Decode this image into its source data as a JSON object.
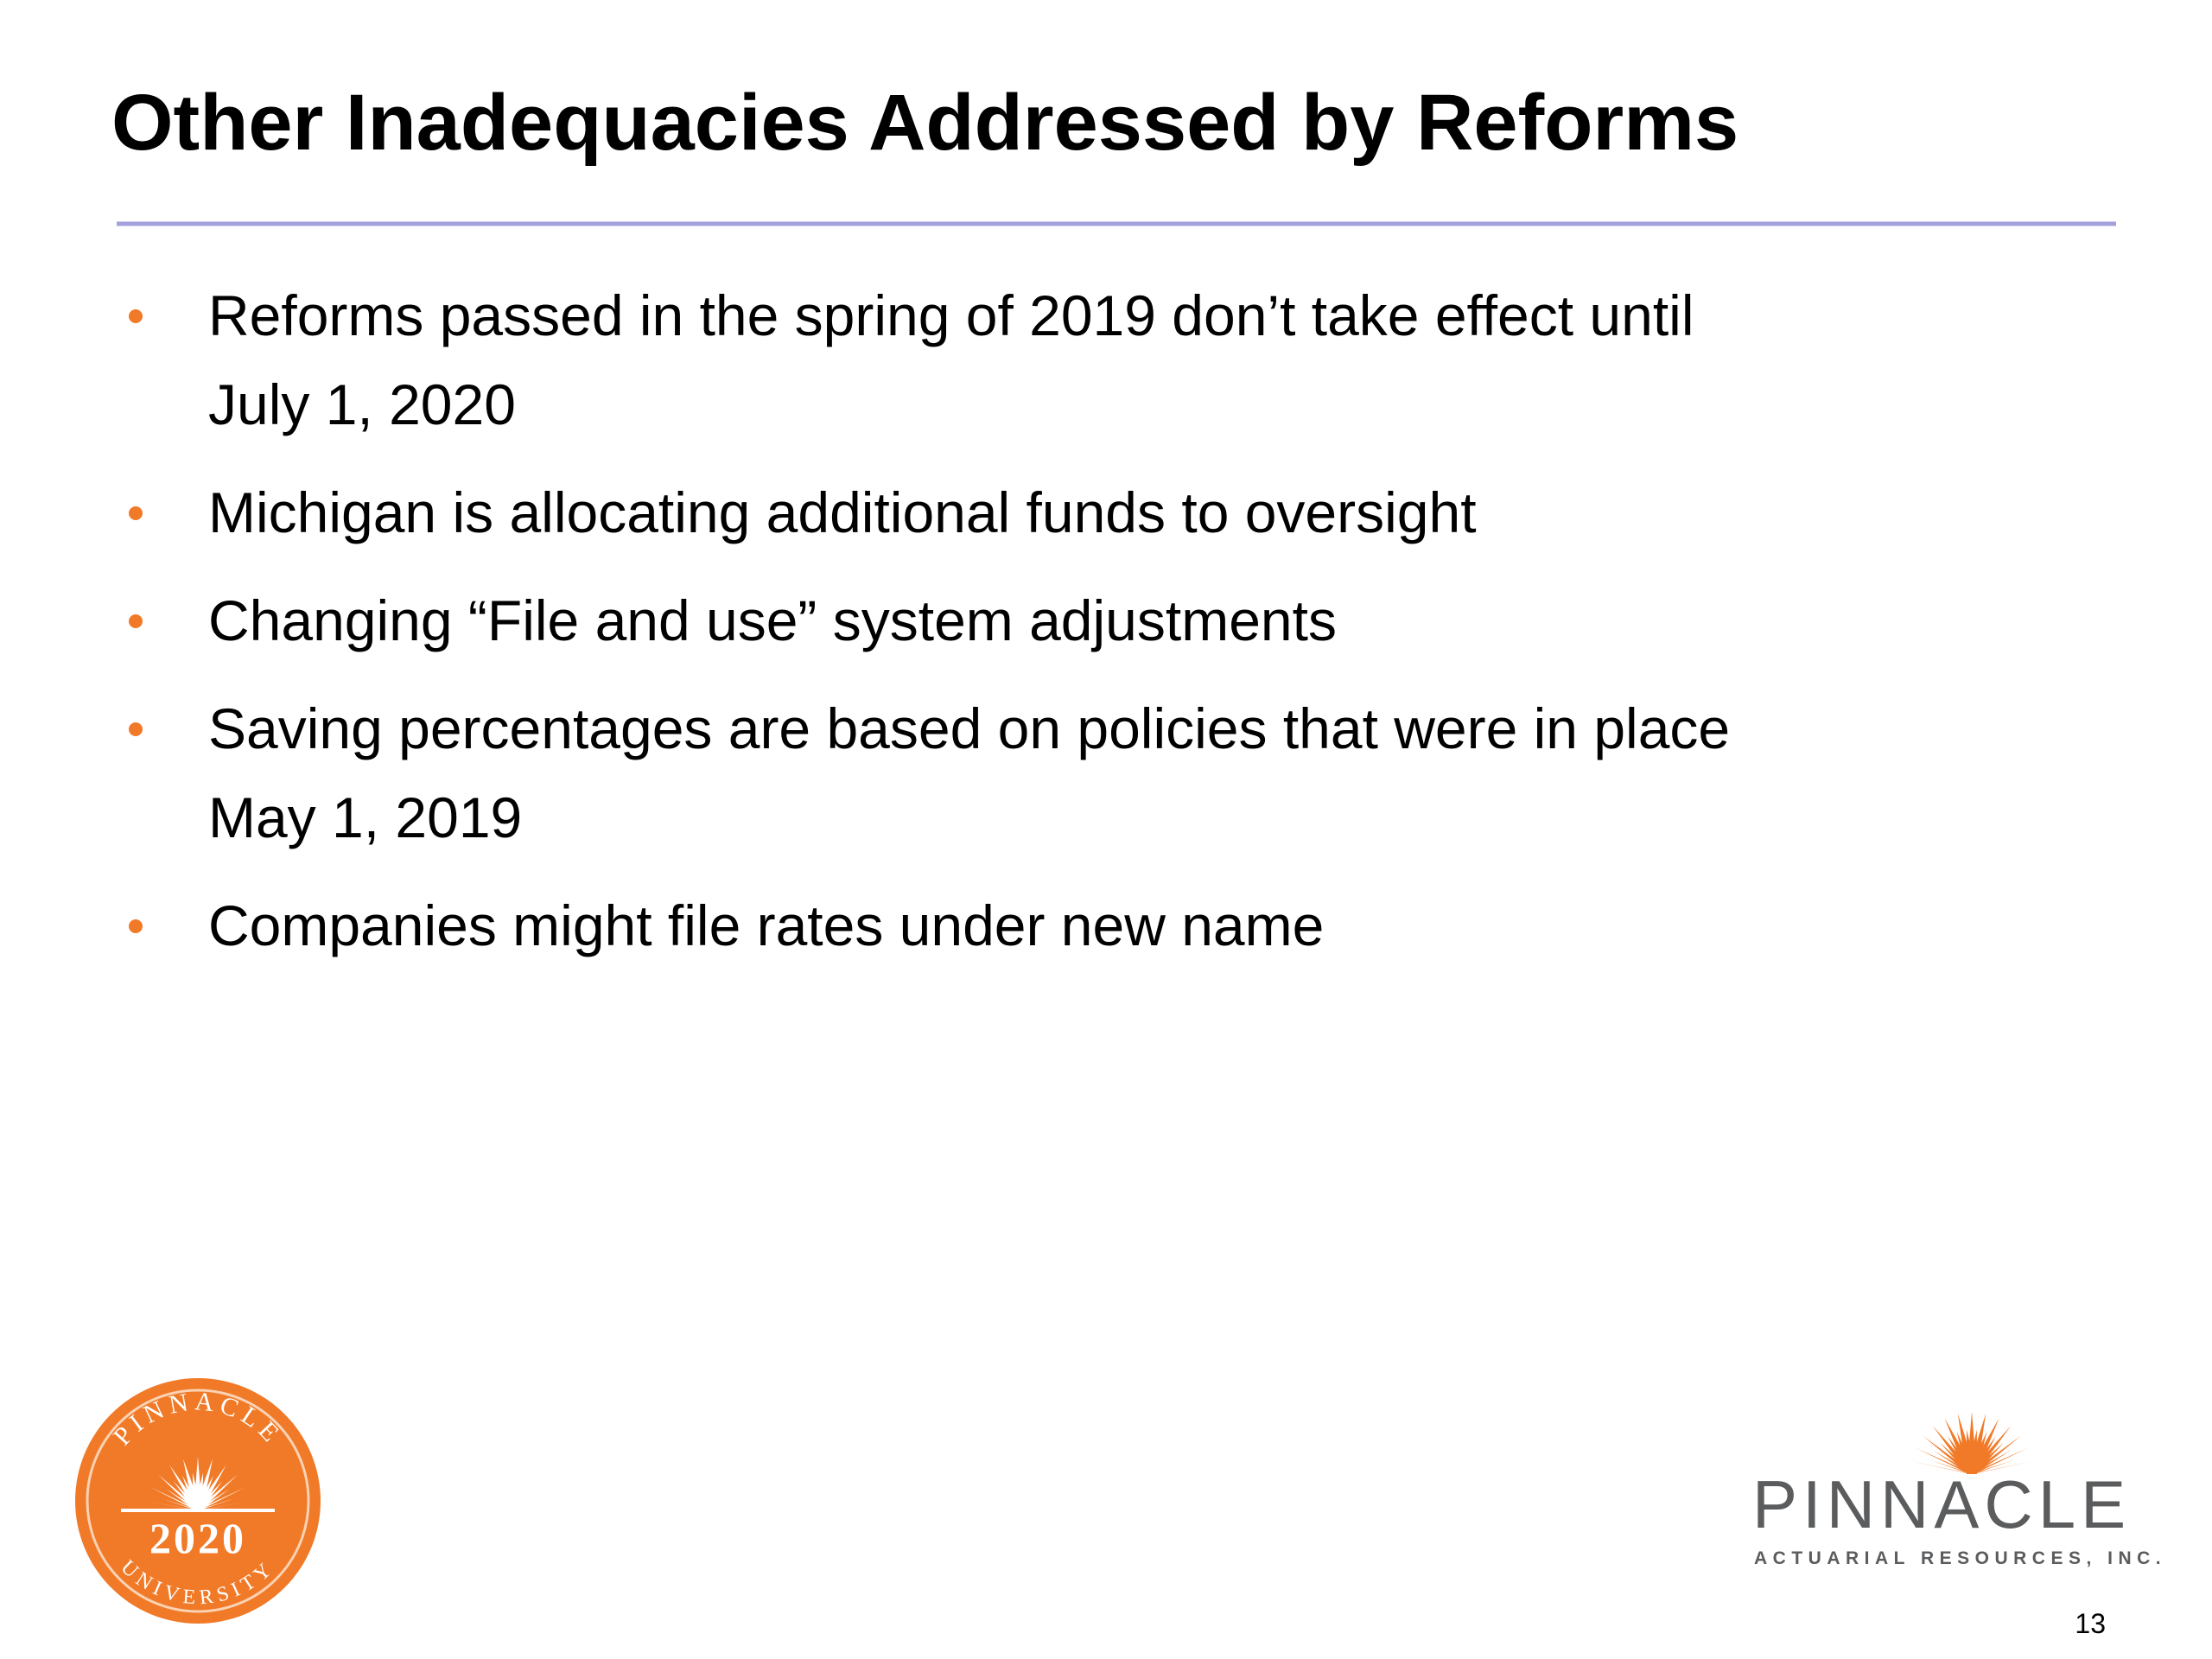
{
  "header": {
    "title": "Other Inadequacies Addressed by Reforms"
  },
  "bullets": [
    {
      "lines": [
        "Reforms passed in the spring of 2019 don’t take effect until",
        "July 1, 2020"
      ]
    },
    {
      "lines": [
        "Michigan is allocating additional funds to oversight"
      ]
    },
    {
      "lines": [
        "Changing “File and use” system adjustments"
      ]
    },
    {
      "lines": [
        "Saving percentages are based on policies that were in place",
        "May 1, 2019"
      ]
    },
    {
      "lines": [
        "Companies might file rates under new name"
      ]
    }
  ],
  "badge": {
    "top_text": "PINNACLE",
    "year": "2020",
    "bottom_text": "UNIVERSITY"
  },
  "logo": {
    "name": "PINNACLE",
    "tagline": "ACTUARIAL RESOURCES, INC."
  },
  "page_number": "13"
}
